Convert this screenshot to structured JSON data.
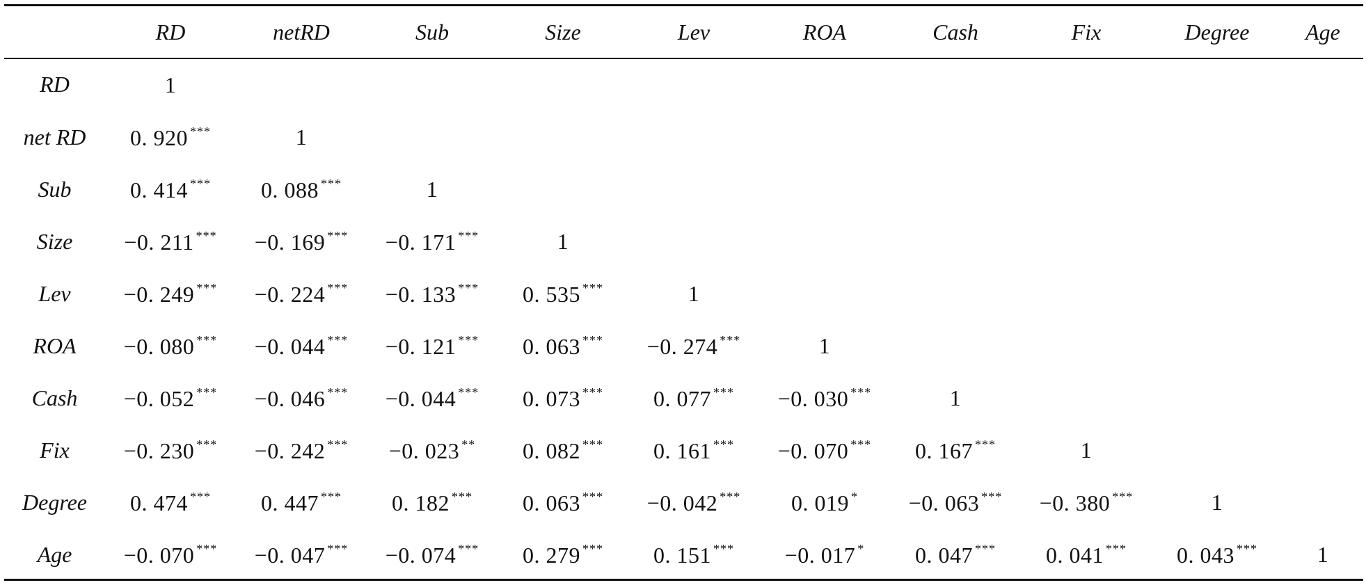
{
  "table": {
    "columns": [
      "RD",
      "netRD",
      "Sub",
      "Size",
      "Lev",
      "ROA",
      "Cash",
      "Fix",
      "Degree",
      "Age"
    ],
    "rows": [
      {
        "label": "RD",
        "cells": [
          {
            "v": "1",
            "s": ""
          }
        ]
      },
      {
        "label": "net RD",
        "cells": [
          {
            "v": "0. 920",
            "s": "***"
          },
          {
            "v": "1",
            "s": ""
          }
        ]
      },
      {
        "label": "Sub",
        "cells": [
          {
            "v": "0. 414",
            "s": "***"
          },
          {
            "v": "0. 088",
            "s": "***"
          },
          {
            "v": "1",
            "s": ""
          }
        ]
      },
      {
        "label": "Size",
        "cells": [
          {
            "v": "−0. 211",
            "s": "***"
          },
          {
            "v": "−0. 169",
            "s": "***"
          },
          {
            "v": "−0. 171",
            "s": "***"
          },
          {
            "v": "1",
            "s": ""
          }
        ]
      },
      {
        "label": "Lev",
        "cells": [
          {
            "v": "−0. 249",
            "s": "***"
          },
          {
            "v": "−0. 224",
            "s": "***"
          },
          {
            "v": "−0. 133",
            "s": "***"
          },
          {
            "v": "0. 535",
            "s": "***"
          },
          {
            "v": "1",
            "s": ""
          }
        ]
      },
      {
        "label": "ROA",
        "cells": [
          {
            "v": "−0. 080",
            "s": "***"
          },
          {
            "v": "−0. 044",
            "s": "***"
          },
          {
            "v": "−0. 121",
            "s": "***"
          },
          {
            "v": "0. 063",
            "s": "***"
          },
          {
            "v": "−0. 274",
            "s": "***"
          },
          {
            "v": "1",
            "s": ""
          }
        ]
      },
      {
        "label": "Cash",
        "cells": [
          {
            "v": "−0. 052",
            "s": "***"
          },
          {
            "v": "−0. 046",
            "s": "***"
          },
          {
            "v": "−0. 044",
            "s": "***"
          },
          {
            "v": "0. 073",
            "s": "***"
          },
          {
            "v": "0. 077",
            "s": "***"
          },
          {
            "v": "−0. 030",
            "s": "***"
          },
          {
            "v": "1",
            "s": ""
          }
        ]
      },
      {
        "label": "Fix",
        "cells": [
          {
            "v": "−0. 230",
            "s": "***"
          },
          {
            "v": "−0. 242",
            "s": "***"
          },
          {
            "v": "−0. 023",
            "s": "**"
          },
          {
            "v": "0. 082",
            "s": "***"
          },
          {
            "v": "0. 161",
            "s": "***"
          },
          {
            "v": "−0. 070",
            "s": "***"
          },
          {
            "v": "0. 167",
            "s": "***"
          },
          {
            "v": "1",
            "s": ""
          }
        ]
      },
      {
        "label": "Degree",
        "cells": [
          {
            "v": "0. 474",
            "s": "***"
          },
          {
            "v": "0. 447",
            "s": "***"
          },
          {
            "v": "0. 182",
            "s": "***"
          },
          {
            "v": "0. 063",
            "s": "***"
          },
          {
            "v": "−0. 042",
            "s": "***"
          },
          {
            "v": "0. 019",
            "s": "*"
          },
          {
            "v": "−0. 063",
            "s": "***"
          },
          {
            "v": "−0. 380",
            "s": "***"
          },
          {
            "v": "1",
            "s": ""
          }
        ]
      },
      {
        "label": "Age",
        "cells": [
          {
            "v": "−0. 070",
            "s": "***"
          },
          {
            "v": "−0. 047",
            "s": "***"
          },
          {
            "v": "−0. 074",
            "s": "***"
          },
          {
            "v": "0. 279",
            "s": "***"
          },
          {
            "v": "0. 151",
            "s": "***"
          },
          {
            "v": "−0. 017",
            "s": "*"
          },
          {
            "v": "0. 047",
            "s": "***"
          },
          {
            "v": "0. 041",
            "s": "***"
          },
          {
            "v": "0. 043",
            "s": "***"
          },
          {
            "v": "1",
            "s": ""
          }
        ]
      }
    ]
  }
}
